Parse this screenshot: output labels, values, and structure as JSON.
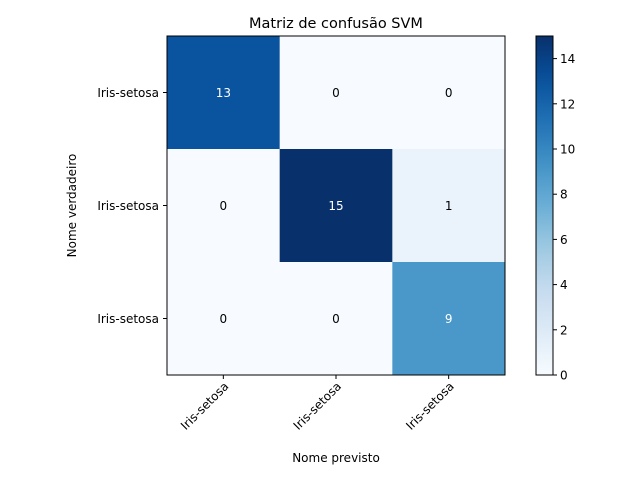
{
  "chart_data": {
    "type": "heatmap",
    "title": "Matriz de confusão SVM",
    "xlabel": "Nome previsto",
    "ylabel": "Nome verdadeiro",
    "x_categories": [
      "Iris-setosa",
      "Iris-setosa",
      "Iris-setosa"
    ],
    "y_categories": [
      "Iris-setosa",
      "Iris-setosa",
      "Iris-setosa"
    ],
    "matrix": [
      [
        13,
        0,
        0
      ],
      [
        0,
        15,
        1
      ],
      [
        0,
        0,
        9
      ]
    ],
    "colorbar": {
      "min": 0,
      "max": 15,
      "ticks": [
        0,
        2,
        4,
        6,
        8,
        10,
        12,
        14
      ]
    },
    "colormap": "Blues",
    "grid": false
  }
}
